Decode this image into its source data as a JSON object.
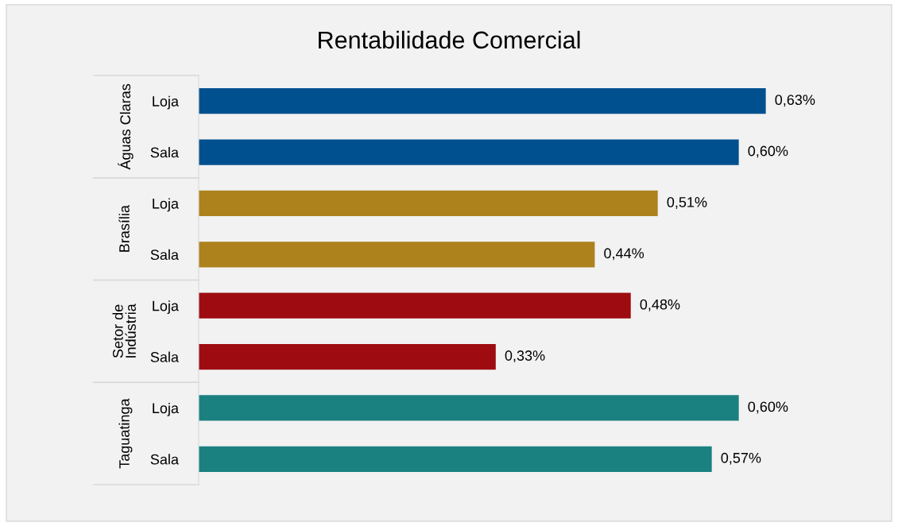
{
  "chart_data": {
    "type": "bar",
    "orientation": "horizontal",
    "title": "Rentabilidade Comercial",
    "categories": [
      "Loja",
      "Sala",
      "Loja",
      "Sala",
      "Loja",
      "Sala",
      "Loja",
      "Sala"
    ],
    "series": [
      {
        "color": "#00508f",
        "values": [
          0.63,
          0.6,
          null,
          null,
          null,
          null,
          null,
          null
        ],
        "value_labels": [
          "0,63%",
          "0,60%",
          null,
          null,
          null,
          null,
          null,
          null
        ]
      },
      {
        "color": "#ad821c",
        "values": [
          null,
          null,
          0.51,
          0.44,
          null,
          null,
          null,
          null
        ],
        "value_labels": [
          null,
          null,
          "0,51%",
          "0,44%",
          null,
          null,
          null,
          null
        ]
      },
      {
        "color": "#9e0b10",
        "values": [
          null,
          null,
          null,
          null,
          0.48,
          0.33,
          null,
          null
        ],
        "value_labels": [
          null,
          null,
          null,
          null,
          "0,48%",
          "0,33%",
          null,
          null
        ]
      },
      {
        "color": "#1b8080",
        "values": [
          null,
          null,
          null,
          null,
          null,
          null,
          0.6,
          0.57
        ],
        "value_labels": [
          null,
          null,
          null,
          null,
          null,
          null,
          "0,60%",
          "0,57%"
        ]
      }
    ],
    "annotations": [
      "Águas Claras",
      "Brasília",
      "Setor de Indústria",
      "Taguatinga"
    ],
    "tick_labels": "y",
    "grid": false,
    "legend": false
  }
}
